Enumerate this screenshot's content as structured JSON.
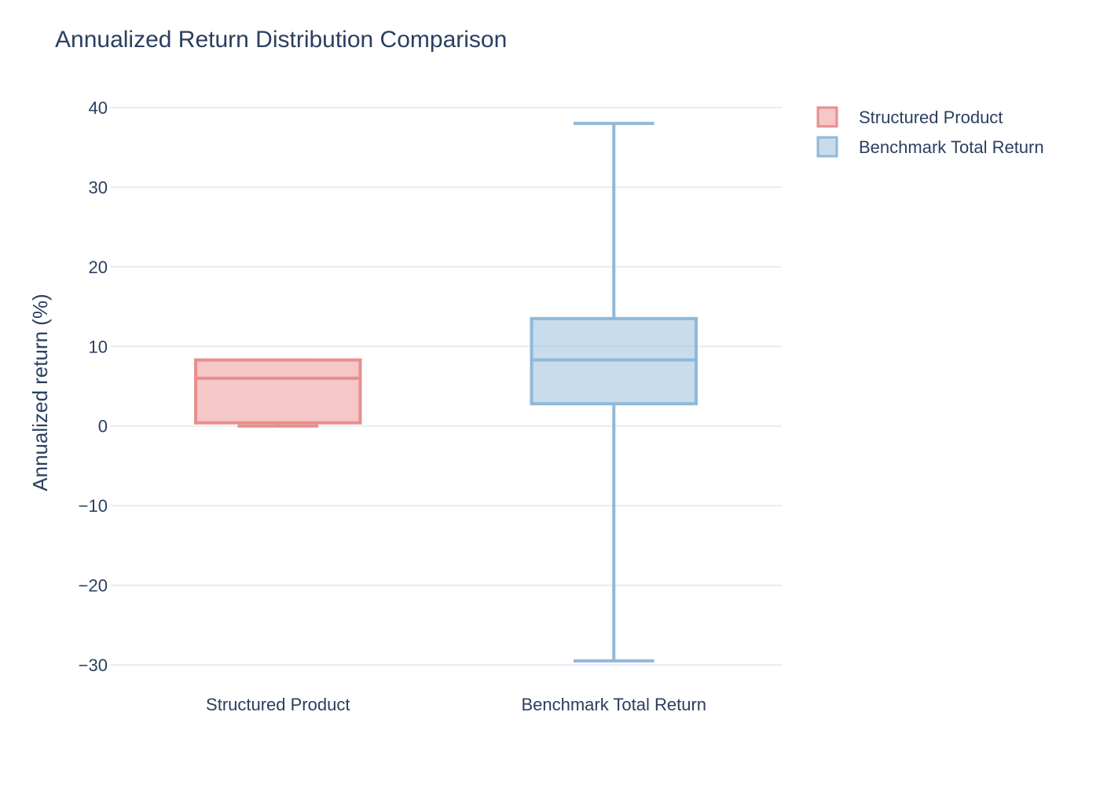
{
  "chart_data": {
    "type": "box",
    "title": "Annualized Return Distribution Comparison",
    "xlabel": "",
    "ylabel": "Annualized return (%)",
    "ylim": [
      -32.5,
      43
    ],
    "yticks": [
      40,
      30,
      20,
      10,
      0,
      -10,
      -20,
      -30
    ],
    "ytick_labels": [
      "40",
      "30",
      "20",
      "10",
      "0",
      "−10",
      "−20",
      "−30"
    ],
    "grid": true,
    "legend_position": "top-right",
    "categories": [
      "Structured Product",
      "Benchmark Total Return"
    ],
    "series": [
      {
        "name": "Structured Product",
        "category": "Structured Product",
        "min": 0.0,
        "q1": 0.4,
        "median": 6.0,
        "q3": 8.3,
        "max": 8.3,
        "fill_color": "rgba(229,115,115,0.4)",
        "line_color": "#e88e8e"
      },
      {
        "name": "Benchmark Total Return",
        "category": "Benchmark Total Return",
        "min": -29.5,
        "q1": 2.8,
        "median": 8.3,
        "q3": 13.5,
        "max": 38.0,
        "fill_color": "rgba(145,185,218,0.5)",
        "line_color": "#8fb8d8"
      }
    ]
  }
}
